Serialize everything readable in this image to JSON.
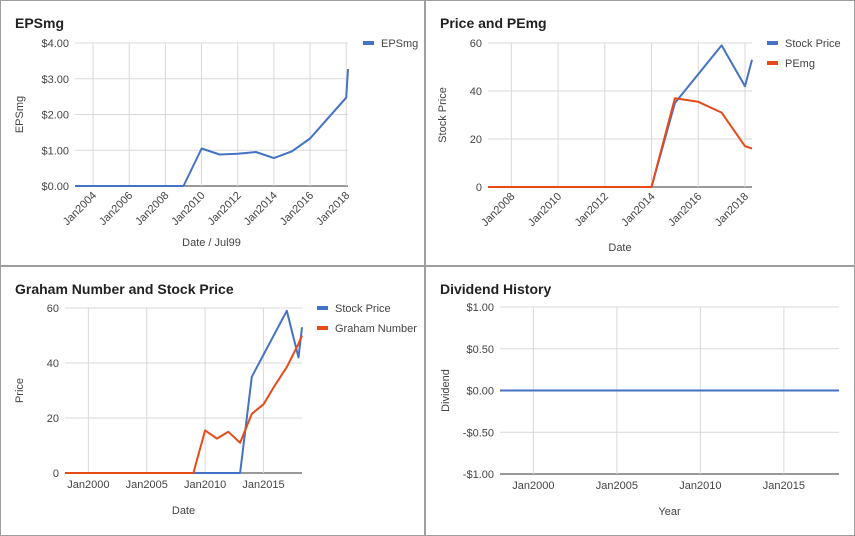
{
  "colors": {
    "blue": "#4472c4",
    "red": "#e64a19",
    "grid": "#d9d9d9",
    "axis": "#333333",
    "text": "#444444"
  },
  "chart_data": [
    {
      "type": "line",
      "title": "EPSmg",
      "xlabel": "Date / Jul99",
      "ylabel": "EPSmg",
      "x_ticks": [
        "Jan2004",
        "Jan2006",
        "Jan2008",
        "Jan2010",
        "Jan2012",
        "Jan2014",
        "Jan2016",
        "Jan2018"
      ],
      "y_ticks": [
        "$0.00",
        "$1.00",
        "$2.00",
        "$3.00",
        "$4.00"
      ],
      "ylim": [
        0,
        4
      ],
      "xlim": [
        2003.0,
        2018.1
      ],
      "legend": "top-right",
      "grid": true,
      "series": [
        {
          "name": "EPSmg",
          "color": "#4472c4",
          "x": [
            2003.0,
            2009.0,
            2010.0,
            2011.0,
            2012.0,
            2013.0,
            2014.0,
            2015.0,
            2016.0,
            2017.0,
            2018.0,
            2018.1
          ],
          "y": [
            0.0,
            0.0,
            1.05,
            0.88,
            0.9,
            0.95,
            0.78,
            0.97,
            1.33,
            1.9,
            2.47,
            3.27
          ]
        }
      ]
    },
    {
      "type": "line",
      "title": "Price and PEmg",
      "xlabel": "Date",
      "ylabel": "Stock Price",
      "x_ticks": [
        "Jan2008",
        "Jan2010",
        "Jan2012",
        "Jan2014",
        "Jan2016",
        "Jan2018"
      ],
      "y_ticks": [
        "0",
        "20",
        "40",
        "60"
      ],
      "ylim": [
        0,
        60
      ],
      "xlim": [
        2007.0,
        2018.3
      ],
      "legend": "top-right",
      "grid": true,
      "series": [
        {
          "name": "Stock Price",
          "color": "#4472c4",
          "x": [
            2007.0,
            2014.0,
            2015.0,
            2017.0,
            2018.0,
            2018.3
          ],
          "y": [
            0,
            0,
            35,
            59,
            42,
            53
          ]
        },
        {
          "name": "PEmg",
          "color": "#e64a19",
          "x": [
            2007.0,
            2014.0,
            2015.0,
            2016.0,
            2017.0,
            2018.0,
            2018.3
          ],
          "y": [
            0,
            0,
            37,
            35.5,
            31,
            17,
            16
          ]
        }
      ]
    },
    {
      "type": "line",
      "title": "Graham Number and Stock Price",
      "xlabel": "Date",
      "ylabel": "Price",
      "x_ticks": [
        "Jan2000",
        "Jan2005",
        "Jan2010",
        "Jan2015"
      ],
      "y_ticks": [
        "0",
        "20",
        "40",
        "60"
      ],
      "ylim": [
        0,
        60
      ],
      "xlim": [
        1998.0,
        2018.3
      ],
      "legend": "top-right",
      "grid": true,
      "series": [
        {
          "name": "Stock Price",
          "color": "#4472c4",
          "x": [
            1998.0,
            2013.0,
            2014.0,
            2017.0,
            2018.0,
            2018.3
          ],
          "y": [
            0,
            0,
            35,
            59,
            42,
            53
          ]
        },
        {
          "name": "Graham Number",
          "color": "#e64a19",
          "x": [
            1998.0,
            2009.0,
            2010.0,
            2011.0,
            2012.0,
            2013.0,
            2014.0,
            2015.0,
            2016.0,
            2017.0,
            2018.0,
            2018.3
          ],
          "y": [
            0,
            0,
            15.5,
            12.5,
            15,
            11,
            21.5,
            25,
            32,
            38.5,
            47,
            50
          ]
        }
      ]
    },
    {
      "type": "line",
      "title": "Dividend History",
      "xlabel": "Year",
      "ylabel": "Dividend",
      "x_ticks": [
        "Jan2000",
        "Jan2005",
        "Jan2010",
        "Jan2015"
      ],
      "y_ticks": [
        "-$1.00",
        "-$0.50",
        "$0.00",
        "$0.50",
        "$1.00"
      ],
      "ylim": [
        -1,
        1
      ],
      "xlim": [
        1998.0,
        2018.3
      ],
      "legend": "none",
      "grid": true,
      "series": [
        {
          "name": "",
          "color": "#4472c4",
          "x": [
            1998.0,
            2018.3
          ],
          "y": [
            0,
            0
          ]
        }
      ]
    }
  ]
}
